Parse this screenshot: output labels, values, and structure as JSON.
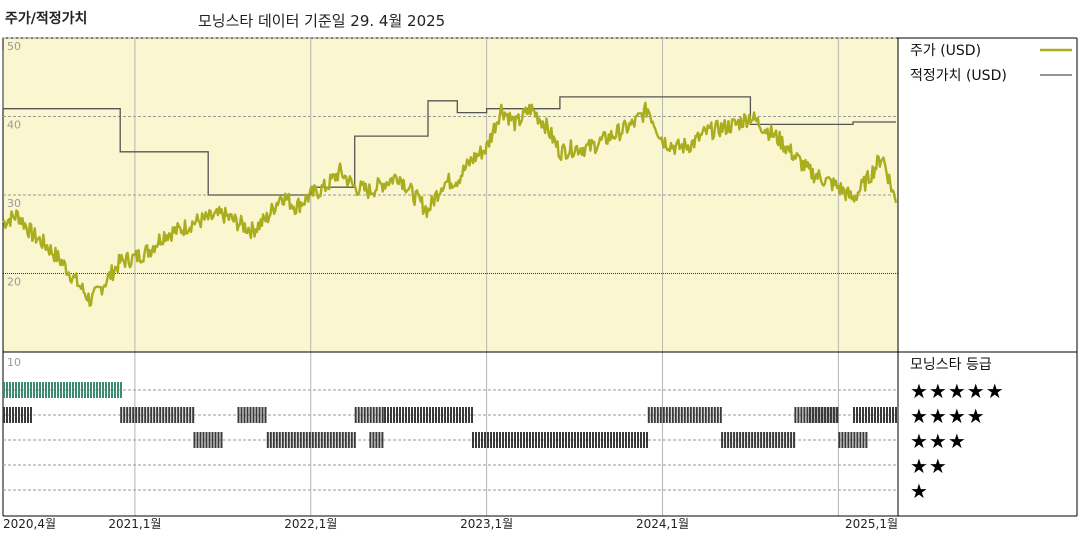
{
  "header": {
    "title": "주가/적정가치",
    "subtitle": "모닝스타 데이터 기준일 29. 4월 2025"
  },
  "legend": {
    "price_label": "주가 (USD)",
    "fair_value_label": "적정가치 (USD)",
    "rating_title": "모닝스타 등급"
  },
  "stars": [
    "★★★★★",
    "★★★★",
    "★★★",
    "★★",
    "★"
  ],
  "colors": {
    "price_line": "#a9ad1e",
    "fair_value_line": "#555555",
    "upper_panel_bg": "#faf6cf",
    "five_star_bar": "#3e8a6e",
    "rating_bar": "#3a3a3a"
  },
  "chart_data": [
    {
      "type": "line",
      "title": "주가/적정가치",
      "ylim": [
        10,
        50
      ],
      "yticks": [
        "10",
        "20",
        "30",
        "40",
        "50"
      ],
      "xticks": [
        "2020,4월",
        "2021,1월",
        "2022,1월",
        "2023,1월",
        "2024,1월",
        "2025,1월"
      ],
      "grid": true,
      "legend_position": "right",
      "series": [
        {
          "name": "주가 (USD)",
          "points": [
            [
              "2020-04",
              26.5
            ],
            [
              "2020-05",
              27.5
            ],
            [
              "2020-06",
              25
            ],
            [
              "2020-07",
              23.5
            ],
            [
              "2020-08",
              21.5
            ],
            [
              "2020-09",
              19
            ],
            [
              "2020-10",
              16.5
            ],
            [
              "2020-11",
              19
            ],
            [
              "2020-12",
              21.5
            ],
            [
              "2021-01",
              22
            ],
            [
              "2021-02",
              23
            ],
            [
              "2021-03",
              25
            ],
            [
              "2021-04",
              25.5
            ],
            [
              "2021-05",
              26.5
            ],
            [
              "2021-06",
              27
            ],
            [
              "2021-07",
              27.5
            ],
            [
              "2021-08",
              26.5
            ],
            [
              "2021-09",
              25.5
            ],
            [
              "2021-10",
              27
            ],
            [
              "2021-11",
              30
            ],
            [
              "2021-12",
              28.5
            ],
            [
              "2022-01",
              30
            ],
            [
              "2022-02",
              31
            ],
            [
              "2022-03",
              33
            ],
            [
              "2022-04",
              31
            ],
            [
              "2022-05",
              30.5
            ],
            [
              "2022-06",
              31.5
            ],
            [
              "2022-07",
              32.5
            ],
            [
              "2022-08",
              30
            ],
            [
              "2022-09",
              28
            ],
            [
              "2022-10",
              31.5
            ],
            [
              "2022-11",
              32
            ],
            [
              "2022-12",
              34.5
            ],
            [
              "2023-01",
              36
            ],
            [
              "2023-02",
              41
            ],
            [
              "2023-03",
              39
            ],
            [
              "2023-04",
              41
            ],
            [
              "2023-05",
              39
            ],
            [
              "2023-06",
              35.5
            ],
            [
              "2023-07",
              36
            ],
            [
              "2023-08",
              36
            ],
            [
              "2023-09",
              37
            ],
            [
              "2023-10",
              38
            ],
            [
              "2023-11",
              39
            ],
            [
              "2023-12",
              41
            ],
            [
              "2024-01",
              37
            ],
            [
              "2024-02",
              36
            ],
            [
              "2024-03",
              36.5
            ],
            [
              "2024-04",
              38
            ],
            [
              "2024-05",
              38.5
            ],
            [
              "2024-06",
              39
            ],
            [
              "2024-07",
              40
            ],
            [
              "2024-08",
              38.5
            ],
            [
              "2024-09",
              37
            ],
            [
              "2024-10",
              35
            ],
            [
              "2024-11",
              33
            ],
            [
              "2024-12",
              32
            ],
            [
              "2025-01",
              31
            ],
            [
              "2025-02",
              29.5
            ],
            [
              "2025-03",
              32
            ],
            [
              "2025-04",
              35
            ],
            [
              "2025-04-29",
              29
            ]
          ]
        },
        {
          "name": "적정가치 (USD)",
          "points": [
            [
              "2020-04",
              48.5
            ],
            [
              "2020-04",
              41
            ],
            [
              "2020-12",
              41
            ],
            [
              "2020-12",
              35.5
            ],
            [
              "2021-06",
              35.5
            ],
            [
              "2021-06",
              30
            ],
            [
              "2022-01",
              30
            ],
            [
              "2022-01",
              31
            ],
            [
              "2022-04",
              31
            ],
            [
              "2022-04",
              37.5
            ],
            [
              "2022-09",
              37.5
            ],
            [
              "2022-09",
              42
            ],
            [
              "2022-11",
              42
            ],
            [
              "2022-11",
              40.5
            ],
            [
              "2023-01",
              40.5
            ],
            [
              "2023-01",
              41
            ],
            [
              "2023-06",
              41
            ],
            [
              "2023-06",
              42.5
            ],
            [
              "2024-07",
              42.5
            ],
            [
              "2024-07",
              39
            ],
            [
              "2025-02",
              39
            ],
            [
              "2025-02",
              39.3
            ],
            [
              "2025-04-29",
              39.3
            ]
          ]
        }
      ]
    },
    {
      "type": "bar",
      "title": "모닝스타 등급",
      "ylim": [
        0,
        5
      ],
      "yticks": [
        "10"
      ],
      "categories": [
        "★★★★★",
        "★★★★",
        "★★★",
        "★★",
        "★"
      ],
      "series": [
        {
          "name": "모닝스타 등급",
          "periods": [
            {
              "stars": 5,
              "from": "2020-04",
              "to": "2020-12"
            },
            {
              "stars": 4,
              "from": "2020-04",
              "to": "2020-06"
            },
            {
              "stars": 4,
              "from": "2020-12",
              "to": "2021-05"
            },
            {
              "stars": 3,
              "from": "2021-05",
              "to": "2021-07"
            },
            {
              "stars": 4,
              "from": "2021-08",
              "to": "2021-10"
            },
            {
              "stars": 3,
              "from": "2021-10",
              "to": "2022-04"
            },
            {
              "stars": 3,
              "from": "2022-05",
              "to": "2022-06"
            },
            {
              "stars": 4,
              "from": "2022-04",
              "to": "2022-06"
            },
            {
              "stars": 4,
              "from": "2022-06",
              "to": "2022-12"
            },
            {
              "stars": 3,
              "from": "2022-12",
              "to": "2023-12"
            },
            {
              "stars": 4,
              "from": "2023-12",
              "to": "2024-05"
            },
            {
              "stars": 3,
              "from": "2024-05",
              "to": "2024-10"
            },
            {
              "stars": 4,
              "from": "2024-10",
              "to": "2025-01"
            },
            {
              "stars": 4,
              "from": "2024-11",
              "to": "2025-01"
            },
            {
              "stars": 3,
              "from": "2025-01",
              "to": "2025-03"
            },
            {
              "stars": 4,
              "from": "2025-02",
              "to": "2025-04-29"
            }
          ]
        }
      ]
    }
  ]
}
